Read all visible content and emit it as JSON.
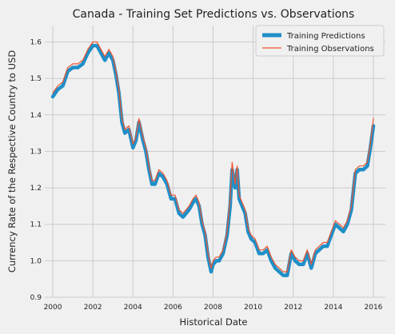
{
  "chart_data": {
    "type": "line",
    "title": "Canada - Training Set Predictions vs. Observations",
    "xlabel": "Historical Date",
    "ylabel": "Currency Rate of the Respective Country to USD",
    "xlim": [
      1999.6,
      2016.6
    ],
    "ylim": [
      0.9,
      1.645
    ],
    "x_ticks": [
      2000,
      2002,
      2004,
      2006,
      2008,
      2010,
      2012,
      2014,
      2016
    ],
    "y_ticks": [
      0.9,
      1.0,
      1.1,
      1.2,
      1.3,
      1.4,
      1.5,
      1.6
    ],
    "grid": true,
    "legend_position": "top-right",
    "colors": {
      "predictions": "#1f8fc8",
      "observations": "#f0522c",
      "background": "#f0f0f0",
      "grid": "#cbcbcb"
    },
    "series": [
      {
        "name": "Training Predictions",
        "x": [
          2000.0,
          2000.25,
          2000.5,
          2000.75,
          2001.0,
          2001.25,
          2001.5,
          2001.75,
          2002.0,
          2002.2,
          2002.4,
          2002.6,
          2002.8,
          2003.0,
          2003.15,
          2003.3,
          2003.45,
          2003.6,
          2003.8,
          2004.0,
          2004.15,
          2004.3,
          2004.5,
          2004.65,
          2004.8,
          2004.95,
          2005.1,
          2005.3,
          2005.5,
          2005.7,
          2005.9,
          2006.1,
          2006.3,
          2006.5,
          2006.65,
          2006.8,
          2007.0,
          2007.15,
          2007.3,
          2007.45,
          2007.6,
          2007.75,
          2007.9,
          2008.0,
          2008.15,
          2008.3,
          2008.5,
          2008.7,
          2008.85,
          2008.95,
          2009.1,
          2009.2,
          2009.3,
          2009.45,
          2009.6,
          2009.75,
          2009.9,
          2010.1,
          2010.3,
          2010.5,
          2010.7,
          2010.9,
          2011.1,
          2011.3,
          2011.5,
          2011.7,
          2011.9,
          2012.1,
          2012.3,
          2012.5,
          2012.7,
          2012.9,
          2013.1,
          2013.3,
          2013.5,
          2013.7,
          2013.9,
          2014.1,
          2014.3,
          2014.5,
          2014.7,
          2014.9,
          2015.1,
          2015.3,
          2015.5,
          2015.7,
          2015.85,
          2016.0
        ],
        "y": [
          1.45,
          1.47,
          1.48,
          1.52,
          1.53,
          1.53,
          1.54,
          1.57,
          1.59,
          1.59,
          1.57,
          1.55,
          1.57,
          1.55,
          1.51,
          1.46,
          1.38,
          1.35,
          1.36,
          1.31,
          1.33,
          1.38,
          1.33,
          1.3,
          1.25,
          1.21,
          1.21,
          1.24,
          1.23,
          1.21,
          1.17,
          1.17,
          1.13,
          1.12,
          1.13,
          1.14,
          1.16,
          1.17,
          1.15,
          1.1,
          1.07,
          1.01,
          0.97,
          0.99,
          1.0,
          1.0,
          1.02,
          1.07,
          1.15,
          1.25,
          1.2,
          1.25,
          1.17,
          1.15,
          1.13,
          1.08,
          1.06,
          1.05,
          1.02,
          1.02,
          1.03,
          1.0,
          0.98,
          0.97,
          0.96,
          0.96,
          1.02,
          1.0,
          0.99,
          0.99,
          1.02,
          0.98,
          1.02,
          1.03,
          1.04,
          1.04,
          1.07,
          1.1,
          1.09,
          1.08,
          1.1,
          1.14,
          1.24,
          1.25,
          1.25,
          1.26,
          1.31,
          1.37
        ]
      },
      {
        "name": "Training Observations",
        "x": [
          2000.0,
          2000.25,
          2000.5,
          2000.75,
          2001.0,
          2001.25,
          2001.5,
          2001.75,
          2002.0,
          2002.2,
          2002.4,
          2002.6,
          2002.8,
          2003.0,
          2003.15,
          2003.3,
          2003.45,
          2003.6,
          2003.8,
          2004.0,
          2004.15,
          2004.3,
          2004.5,
          2004.65,
          2004.8,
          2004.95,
          2005.1,
          2005.3,
          2005.5,
          2005.7,
          2005.9,
          2006.1,
          2006.3,
          2006.5,
          2006.65,
          2006.8,
          2007.0,
          2007.15,
          2007.3,
          2007.45,
          2007.6,
          2007.75,
          2007.9,
          2008.0,
          2008.15,
          2008.3,
          2008.5,
          2008.7,
          2008.85,
          2008.95,
          2009.1,
          2009.2,
          2009.3,
          2009.45,
          2009.6,
          2009.75,
          2009.9,
          2010.1,
          2010.3,
          2010.5,
          2010.7,
          2010.9,
          2011.1,
          2011.3,
          2011.5,
          2011.7,
          2011.9,
          2012.1,
          2012.3,
          2012.5,
          2012.7,
          2012.9,
          2013.1,
          2013.3,
          2013.5,
          2013.7,
          2013.9,
          2014.1,
          2014.3,
          2014.5,
          2014.7,
          2014.9,
          2015.1,
          2015.3,
          2015.5,
          2015.7,
          2015.85,
          2016.0
        ],
        "y": [
          1.46,
          1.48,
          1.49,
          1.53,
          1.54,
          1.54,
          1.55,
          1.58,
          1.6,
          1.6,
          1.58,
          1.56,
          1.58,
          1.56,
          1.52,
          1.47,
          1.39,
          1.36,
          1.37,
          1.32,
          1.34,
          1.39,
          1.34,
          1.31,
          1.26,
          1.22,
          1.22,
          1.25,
          1.24,
          1.22,
          1.18,
          1.18,
          1.14,
          1.13,
          1.14,
          1.15,
          1.17,
          1.18,
          1.16,
          1.11,
          1.08,
          1.02,
          0.98,
          1.0,
          1.01,
          1.01,
          1.03,
          1.08,
          1.17,
          1.27,
          1.21,
          1.26,
          1.18,
          1.16,
          1.14,
          1.09,
          1.07,
          1.06,
          1.03,
          1.03,
          1.04,
          1.01,
          0.99,
          0.98,
          0.97,
          0.97,
          1.03,
          1.01,
          1.0,
          1.0,
          1.03,
          0.99,
          1.03,
          1.04,
          1.05,
          1.05,
          1.08,
          1.11,
          1.1,
          1.09,
          1.11,
          1.15,
          1.25,
          1.26,
          1.26,
          1.27,
          1.32,
          1.39
        ]
      }
    ]
  }
}
